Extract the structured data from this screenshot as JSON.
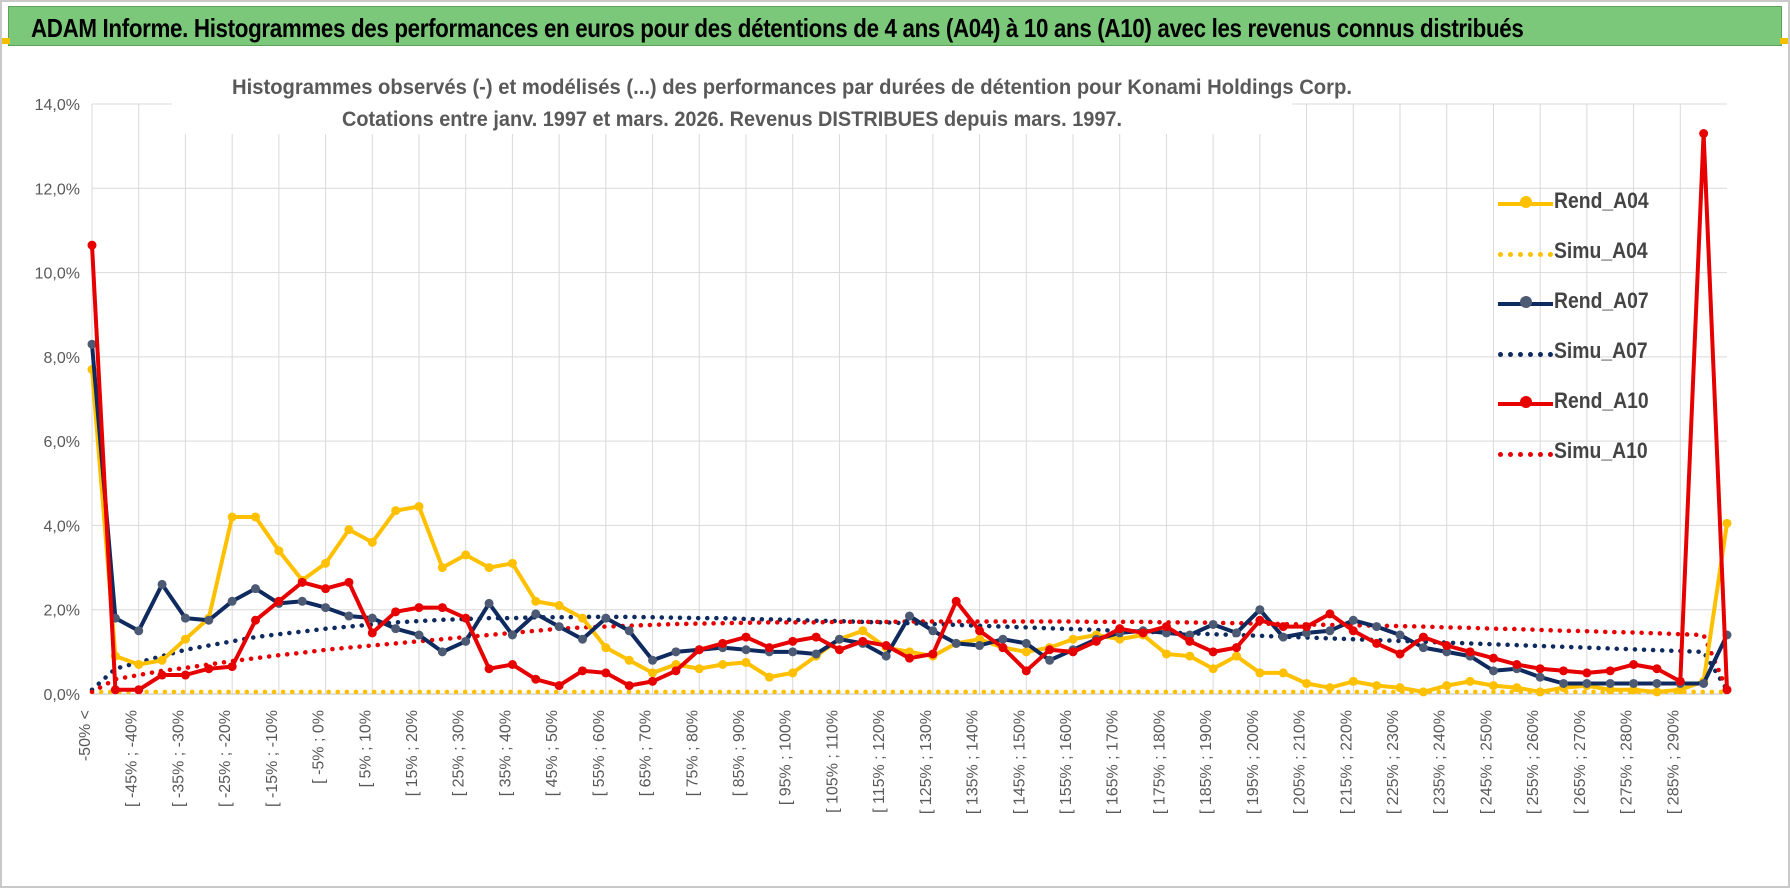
{
  "header": {
    "title": "ADAM Informe. Histogrammes des performances en euros pour des détentions de 4 ans (A04) à 10 ans (A10) avec les revenus connus distribués"
  },
  "chart_data": {
    "type": "line",
    "title": "Histogrammes observés (-) et modélisés (...) des performances par durées de détention pour Konami Holdings Corp.",
    "subtitle": "Cotations entre janv. 1997 et mars. 2026.  Revenus DISTRIBUES depuis mars. 1997.",
    "ylim": [
      0,
      14
    ],
    "y_ticks": [
      "0,0%",
      "2,0%",
      "4,0%",
      "6,0%",
      "8,0%",
      "10,0%",
      "12,0%",
      "14,0%"
    ],
    "x_labels": [
      "-50% <",
      "[ -45% ; -40%",
      "[ -35% ; -30%",
      "[ -25% ; -20%",
      "[ -15% ; -10%",
      "[ -5% ; 0%",
      "[ 5% ; 10%",
      "[ 15% ; 20%",
      "[ 25% ; 30%",
      "[ 35% ; 40%",
      "[ 45% ; 50%",
      "[ 55% ; 60%",
      "[ 65% ; 70%",
      "[ 75% ; 80%",
      "[ 85% ; 90%",
      "[ 95% ; 100%",
      "[ 105% ; 110%",
      "[ 115% ; 120%",
      "[ 125% ; 130%",
      "[ 135% ; 140%",
      "[ 145% ; 150%",
      "[ 155% ; 160%",
      "[ 165% ; 170%",
      "[ 175% ; 180%",
      "[ 185% ; 190%",
      "[ 195% ; 200%",
      "[ 205% ; 210%",
      "[ 215% ; 220%",
      "[ 225% ; 230%",
      "[ 235% ; 240%",
      "[ 245% ; 250%",
      "[ 255% ; 260%",
      "[ 265% ; 270%",
      "[ 275% ; 280%",
      "[ 285% ; 290%"
    ],
    "n_points": 71,
    "series": [
      {
        "name": "Rend_A04",
        "color": "#ffc000",
        "style": "solid",
        "values": [
          7.7,
          0.9,
          0.7,
          0.8,
          1.3,
          1.8,
          4.2,
          4.2,
          3.4,
          2.7,
          3.1,
          3.9,
          3.6,
          4.35,
          4.45,
          3.0,
          3.3,
          3.0,
          3.1,
          2.2,
          2.1,
          1.8,
          1.1,
          0.8,
          0.5,
          0.7,
          0.6,
          0.7,
          0.75,
          0.4,
          0.5,
          0.9,
          1.3,
          1.5,
          1.1,
          1.0,
          0.9,
          1.2,
          1.3,
          1.1,
          1.0,
          1.1,
          1.3,
          1.4,
          1.3,
          1.4,
          0.95,
          0.9,
          0.6,
          0.9,
          0.5,
          0.5,
          0.25,
          0.15,
          0.3,
          0.2,
          0.15,
          0.05,
          0.2,
          0.3,
          0.2,
          0.15,
          0.05,
          0.15,
          0.2,
          0.1,
          0.1,
          0.05,
          0.1,
          0.3,
          4.05
        ]
      },
      {
        "name": "Simu_A04",
        "color": "#ffc000",
        "style": "dotted",
        "values": [
          0.05,
          0.05,
          0.05,
          0.05,
          0.05,
          0.05,
          0.05,
          0.05,
          0.05,
          0.05,
          0.05,
          0.05,
          0.05,
          0.05,
          0.05,
          0.05,
          0.05,
          0.05,
          0.05,
          0.05,
          0.05,
          0.05,
          0.05,
          0.05,
          0.05,
          0.05,
          0.05,
          0.05,
          0.05,
          0.05,
          0.05,
          0.05,
          0.05,
          0.05,
          0.05,
          0.05,
          0.05,
          0.05,
          0.05,
          0.05,
          0.05,
          0.05,
          0.05,
          0.05,
          0.05,
          0.05,
          0.05,
          0.05,
          0.05,
          0.05,
          0.05,
          0.05,
          0.05,
          0.05,
          0.05,
          0.05,
          0.05,
          0.05,
          0.05,
          0.05,
          0.05,
          0.05,
          0.05,
          0.05,
          0.05,
          0.05,
          0.05,
          0.05,
          0.05,
          0.05,
          0.05
        ]
      },
      {
        "name": "Rend_A07",
        "color": "#0f2a5e",
        "style": "solid",
        "values": [
          8.3,
          1.8,
          1.5,
          2.6,
          1.8,
          1.75,
          2.2,
          2.5,
          2.15,
          2.2,
          2.05,
          1.85,
          1.8,
          1.55,
          1.4,
          1.0,
          1.25,
          2.15,
          1.4,
          1.9,
          1.6,
          1.3,
          1.8,
          1.5,
          0.8,
          1.0,
          1.05,
          1.1,
          1.05,
          1.0,
          1.0,
          0.95,
          1.3,
          1.2,
          0.9,
          1.85,
          1.5,
          1.2,
          1.15,
          1.3,
          1.2,
          0.8,
          1.05,
          1.3,
          1.45,
          1.5,
          1.45,
          1.4,
          1.65,
          1.45,
          2.0,
          1.35,
          1.45,
          1.5,
          1.75,
          1.6,
          1.4,
          1.1,
          1.0,
          0.9,
          0.55,
          0.6,
          0.4,
          0.25,
          0.25,
          0.25,
          0.25,
          0.25,
          0.25,
          0.25,
          1.4
        ]
      },
      {
        "name": "Simu_A07",
        "color": "#0f2a5e",
        "style": "dotted",
        "values": [
          0.1,
          0.6,
          0.75,
          0.9,
          1.05,
          1.15,
          1.25,
          1.35,
          1.42,
          1.48,
          1.55,
          1.6,
          1.65,
          1.7,
          1.73,
          1.76,
          1.78,
          1.8,
          1.8,
          1.82,
          1.82,
          1.83,
          1.83,
          1.83,
          1.82,
          1.81,
          1.8,
          1.8,
          1.78,
          1.77,
          1.76,
          1.74,
          1.73,
          1.71,
          1.7,
          1.68,
          1.66,
          1.64,
          1.62,
          1.6,
          1.58,
          1.56,
          1.54,
          1.52,
          1.5,
          1.48,
          1.46,
          1.44,
          1.42,
          1.4,
          1.38,
          1.36,
          1.34,
          1.32,
          1.3,
          1.28,
          1.26,
          1.24,
          1.22,
          1.2,
          1.18,
          1.16,
          1.14,
          1.12,
          1.1,
          1.08,
          1.06,
          1.04,
          1.02,
          1.0,
          0.1
        ]
      },
      {
        "name": "Rend_A10",
        "color": "#e60000",
        "style": "solid",
        "values": [
          10.65,
          0.1,
          0.1,
          0.45,
          0.45,
          0.6,
          0.65,
          1.75,
          2.2,
          2.65,
          2.5,
          2.65,
          1.45,
          1.95,
          2.05,
          2.05,
          1.8,
          0.6,
          0.7,
          0.35,
          0.2,
          0.55,
          0.5,
          0.2,
          0.3,
          0.55,
          1.05,
          1.2,
          1.35,
          1.1,
          1.25,
          1.35,
          1.05,
          1.25,
          1.15,
          0.85,
          0.95,
          2.2,
          1.5,
          1.1,
          0.55,
          1.05,
          1.0,
          1.25,
          1.55,
          1.45,
          1.6,
          1.25,
          1.0,
          1.1,
          1.75,
          1.6,
          1.6,
          1.9,
          1.5,
          1.2,
          0.95,
          1.35,
          1.15,
          1.0,
          0.85,
          0.7,
          0.6,
          0.55,
          0.5,
          0.55,
          0.7,
          0.6,
          0.3,
          13.3,
          0.1
        ]
      },
      {
        "name": "Simu_A10",
        "color": "#e60000",
        "style": "dotted",
        "values": [
          0.05,
          0.35,
          0.45,
          0.55,
          0.62,
          0.7,
          0.78,
          0.85,
          0.92,
          0.98,
          1.05,
          1.1,
          1.15,
          1.2,
          1.25,
          1.3,
          1.35,
          1.4,
          1.45,
          1.5,
          1.55,
          1.58,
          1.6,
          1.62,
          1.64,
          1.66,
          1.67,
          1.68,
          1.69,
          1.7,
          1.7,
          1.7,
          1.71,
          1.71,
          1.71,
          1.72,
          1.72,
          1.72,
          1.72,
          1.72,
          1.72,
          1.72,
          1.72,
          1.71,
          1.71,
          1.71,
          1.7,
          1.7,
          1.69,
          1.68,
          1.67,
          1.66,
          1.65,
          1.64,
          1.63,
          1.62,
          1.61,
          1.6,
          1.58,
          1.57,
          1.55,
          1.54,
          1.52,
          1.5,
          1.49,
          1.47,
          1.46,
          1.44,
          1.42,
          1.4,
          0.1
        ]
      }
    ]
  }
}
